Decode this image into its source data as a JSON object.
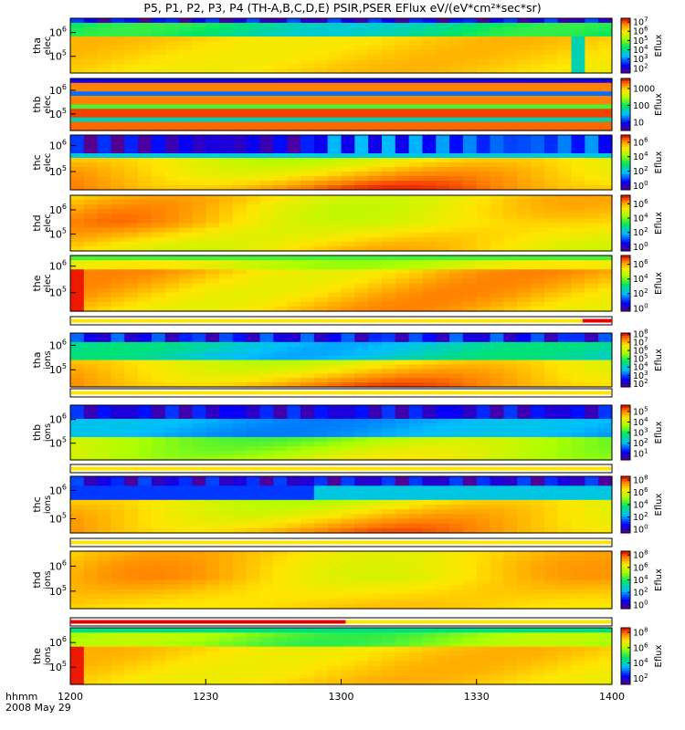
{
  "title": "P5, P1, P2, P3, P4 (TH-A,B,C,D,E) PSIR,PSER EFlux eV/(eV*cm²*sec*sr)",
  "time_axis": {
    "row_label": "hhmm",
    "date_label": "2008 May 29",
    "ticks": [
      "1200",
      "1230",
      "1300",
      "1330",
      "1400"
    ],
    "range_minutes": [
      0,
      120
    ]
  },
  "colorbar_label": "Eflux",
  "chart_data": [
    {
      "type": "heatmap",
      "name": "tha-elec",
      "ylabel": [
        "tha",
        "elec"
      ],
      "y_ticks": [
        {
          "base": "10",
          "exp": "6",
          "v": 6
        },
        {
          "base": "10",
          "exp": "5",
          "v": 5
        }
      ],
      "y_range": [
        4.3,
        6.6
      ],
      "cbar_ticks": [
        {
          "base": "10",
          "exp": "7",
          "v": 7
        },
        {
          "base": "10",
          "exp": "6",
          "v": 6
        },
        {
          "base": "10",
          "exp": "5",
          "v": 5
        },
        {
          "base": "10",
          "exp": "4",
          "v": 4
        },
        {
          "base": "10",
          "exp": "3",
          "v": 3
        },
        {
          "base": "10",
          "exp": "2",
          "v": 2
        }
      ],
      "cbar_range": [
        1.5,
        7.4
      ]
    },
    {
      "type": "heatmap",
      "name": "thb-elec",
      "ylabel": [
        "thb",
        "elec"
      ],
      "y_ticks": [
        {
          "base": "10",
          "exp": "6",
          "v": 6
        },
        {
          "base": "10",
          "exp": "5",
          "v": 5
        }
      ],
      "y_range": [
        4.3,
        6.5
      ],
      "cbar_ticks": [
        {
          "base": "1000",
          "exp": "",
          "v": 3
        },
        {
          "base": "100",
          "exp": "",
          "v": 2
        },
        {
          "base": "10",
          "exp": "",
          "v": 1
        }
      ],
      "cbar_range": [
        0.5,
        3.6
      ]
    },
    {
      "type": "heatmap",
      "name": "thc-elec",
      "ylabel": [
        "thc",
        "elec"
      ],
      "y_ticks": [
        {
          "base": "10",
          "exp": "6",
          "v": 6
        },
        {
          "base": "10",
          "exp": "5",
          "v": 5
        }
      ],
      "y_range": [
        4.3,
        6.4
      ],
      "cbar_ticks": [
        {
          "base": "10",
          "exp": "6",
          "v": 6
        },
        {
          "base": "10",
          "exp": "4",
          "v": 4
        },
        {
          "base": "10",
          "exp": "2",
          "v": 2
        },
        {
          "base": "10",
          "exp": "0",
          "v": 0
        }
      ],
      "cbar_range": [
        -0.6,
        7.0
      ]
    },
    {
      "type": "heatmap",
      "name": "thd-elec",
      "ylabel": [
        "thd",
        "elec"
      ],
      "y_ticks": [
        {
          "base": "10",
          "exp": "6",
          "v": 6
        },
        {
          "base": "10",
          "exp": "5",
          "v": 5
        }
      ],
      "y_range": [
        4.3,
        6.6
      ],
      "cbar_ticks": [
        {
          "base": "10",
          "exp": "6",
          "v": 6
        },
        {
          "base": "10",
          "exp": "4",
          "v": 4
        },
        {
          "base": "10",
          "exp": "2",
          "v": 2
        },
        {
          "base": "10",
          "exp": "0",
          "v": 0
        }
      ],
      "cbar_range": [
        -0.6,
        7.2
      ]
    },
    {
      "type": "heatmap",
      "name": "the-elec",
      "ylabel": [
        "the",
        "elec"
      ],
      "y_ticks": [
        {
          "base": "10",
          "exp": "6",
          "v": 6
        },
        {
          "base": "10",
          "exp": "5",
          "v": 5
        }
      ],
      "y_range": [
        4.3,
        6.4
      ],
      "cbar_ticks": [
        {
          "base": "10",
          "exp": "6",
          "v": 6
        },
        {
          "base": "10",
          "exp": "4",
          "v": 4
        },
        {
          "base": "10",
          "exp": "2",
          "v": 2
        },
        {
          "base": "10",
          "exp": "0",
          "v": 0
        }
      ],
      "cbar_range": [
        -0.4,
        7.2
      ]
    },
    {
      "type": "heatmap",
      "name": "tha-ions",
      "ylabel": [
        "tha",
        "ions"
      ],
      "y_ticks": [
        {
          "base": "10",
          "exp": "6",
          "v": 6
        },
        {
          "base": "10",
          "exp": "5",
          "v": 5
        }
      ],
      "y_range": [
        4.3,
        6.5
      ],
      "cbar_ticks": [
        {
          "base": "10",
          "exp": "8",
          "v": 8
        },
        {
          "base": "10",
          "exp": "7",
          "v": 7
        },
        {
          "base": "10",
          "exp": "6",
          "v": 6
        },
        {
          "base": "10",
          "exp": "5",
          "v": 5
        },
        {
          "base": "10",
          "exp": "4",
          "v": 4
        },
        {
          "base": "10",
          "exp": "3",
          "v": 3
        },
        {
          "base": "10",
          "exp": "2",
          "v": 2
        }
      ],
      "cbar_range": [
        1.6,
        8.1
      ]
    },
    {
      "type": "heatmap",
      "name": "thb-ions",
      "ylabel": [
        "thb",
        "ions"
      ],
      "y_ticks": [
        {
          "base": "10",
          "exp": "6",
          "v": 6
        },
        {
          "base": "10",
          "exp": "5",
          "v": 5
        }
      ],
      "y_range": [
        4.3,
        6.6
      ],
      "cbar_ticks": [
        {
          "base": "10",
          "exp": "5",
          "v": 5
        },
        {
          "base": "10",
          "exp": "4",
          "v": 4
        },
        {
          "base": "10",
          "exp": "3",
          "v": 3
        },
        {
          "base": "10",
          "exp": "2",
          "v": 2
        },
        {
          "base": "10",
          "exp": "1",
          "v": 1
        }
      ],
      "cbar_range": [
        0.4,
        5.6
      ]
    },
    {
      "type": "heatmap",
      "name": "thc-ions",
      "ylabel": [
        "thc",
        "ions"
      ],
      "y_ticks": [
        {
          "base": "10",
          "exp": "6",
          "v": 6
        },
        {
          "base": "10",
          "exp": "5",
          "v": 5
        }
      ],
      "y_range": [
        4.5,
        6.5
      ],
      "cbar_ticks": [
        {
          "base": "10",
          "exp": "8",
          "v": 8
        },
        {
          "base": "10",
          "exp": "6",
          "v": 6
        },
        {
          "base": "10",
          "exp": "4",
          "v": 4
        },
        {
          "base": "10",
          "exp": "2",
          "v": 2
        },
        {
          "base": "10",
          "exp": "0",
          "v": 0
        }
      ],
      "cbar_range": [
        -0.6,
        8.6
      ]
    },
    {
      "type": "heatmap",
      "name": "thd-ions",
      "ylabel": [
        "thd",
        "ions"
      ],
      "y_ticks": [
        {
          "base": "10",
          "exp": "6",
          "v": 6
        },
        {
          "base": "10",
          "exp": "5",
          "v": 5
        }
      ],
      "y_range": [
        4.3,
        6.6
      ],
      "cbar_ticks": [
        {
          "base": "10",
          "exp": "8",
          "v": 8
        },
        {
          "base": "10",
          "exp": "6",
          "v": 6
        },
        {
          "base": "10",
          "exp": "4",
          "v": 4
        },
        {
          "base": "10",
          "exp": "2",
          "v": 2
        },
        {
          "base": "10",
          "exp": "0",
          "v": 0
        }
      ],
      "cbar_range": [
        -0.6,
        8.6
      ]
    },
    {
      "type": "heatmap",
      "name": "the-ions",
      "ylabel": [
        "the",
        "ions"
      ],
      "y_ticks": [
        {
          "base": "10",
          "exp": "6",
          "v": 6
        },
        {
          "base": "10",
          "exp": "5",
          "v": 5
        }
      ],
      "y_range": [
        4.3,
        6.6
      ],
      "cbar_ticks": [
        {
          "base": "10",
          "exp": "8",
          "v": 8
        },
        {
          "base": "10",
          "exp": "6",
          "v": 6
        },
        {
          "base": "10",
          "exp": "4",
          "v": 4
        },
        {
          "base": "10",
          "exp": "2",
          "v": 2
        }
      ],
      "cbar_range": [
        1.2,
        8.6
      ]
    }
  ],
  "status_bars": [
    {
      "name": "bar-1",
      "red_range": [
        113.5,
        120
      ]
    },
    {
      "name": "bar-2",
      "red_range": null
    },
    {
      "name": "bar-3",
      "red_range": null
    },
    {
      "name": "bar-4",
      "red_range": null
    },
    {
      "name": "bar-5",
      "red_range": [
        0,
        61
      ]
    }
  ]
}
